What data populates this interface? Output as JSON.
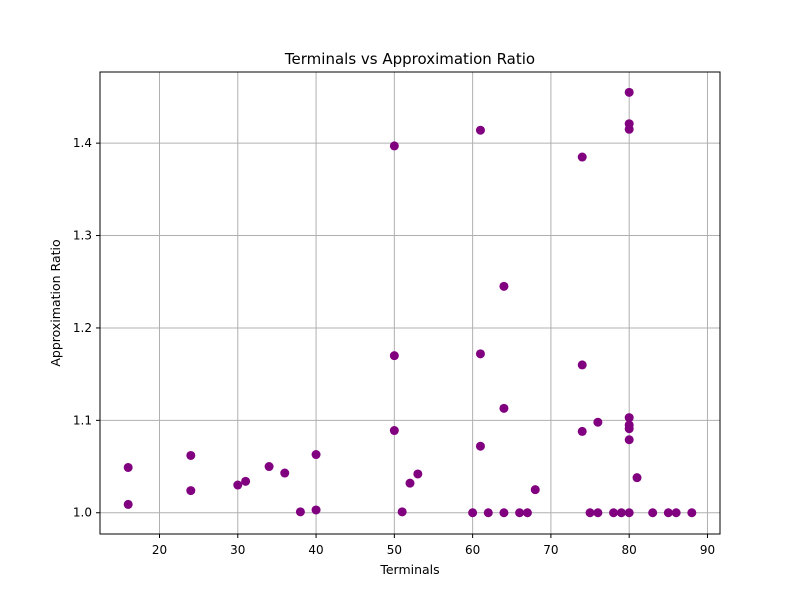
{
  "chart_data": {
    "type": "scatter",
    "title": "Terminals vs Approximation Ratio",
    "xlabel": "Terminals",
    "ylabel": "Approximation Ratio",
    "xlim": [
      12.4,
      91.6
    ],
    "ylim": [
      0.977,
      1.477
    ],
    "xticks": [
      20,
      30,
      40,
      50,
      60,
      70,
      80,
      90
    ],
    "yticks": [
      1.0,
      1.1,
      1.2,
      1.3,
      1.4
    ],
    "ytick_labels": [
      "1.0",
      "1.1",
      "1.2",
      "1.3",
      "1.4"
    ],
    "grid": true,
    "marker_color": "#800080",
    "points": [
      {
        "x": 16,
        "y": 1.049
      },
      {
        "x": 16,
        "y": 1.009
      },
      {
        "x": 24,
        "y": 1.062
      },
      {
        "x": 24,
        "y": 1.024
      },
      {
        "x": 30,
        "y": 1.03
      },
      {
        "x": 31,
        "y": 1.034
      },
      {
        "x": 34,
        "y": 1.05
      },
      {
        "x": 36,
        "y": 1.043
      },
      {
        "x": 38,
        "y": 1.001
      },
      {
        "x": 40,
        "y": 1.063
      },
      {
        "x": 40,
        "y": 1.003
      },
      {
        "x": 50,
        "y": 1.397
      },
      {
        "x": 50,
        "y": 1.17
      },
      {
        "x": 50,
        "y": 1.089
      },
      {
        "x": 51,
        "y": 1.001
      },
      {
        "x": 52,
        "y": 1.032
      },
      {
        "x": 53,
        "y": 1.042
      },
      {
        "x": 60,
        "y": 1.0
      },
      {
        "x": 61,
        "y": 1.414
      },
      {
        "x": 61,
        "y": 1.172
      },
      {
        "x": 61,
        "y": 1.072
      },
      {
        "x": 62,
        "y": 1.0
      },
      {
        "x": 64,
        "y": 1.245
      },
      {
        "x": 64,
        "y": 1.113
      },
      {
        "x": 64,
        "y": 1.0
      },
      {
        "x": 66,
        "y": 1.0
      },
      {
        "x": 67,
        "y": 1.0
      },
      {
        "x": 68,
        "y": 1.025
      },
      {
        "x": 74,
        "y": 1.385
      },
      {
        "x": 74,
        "y": 1.16
      },
      {
        "x": 74,
        "y": 1.088
      },
      {
        "x": 75,
        "y": 1.0
      },
      {
        "x": 76,
        "y": 1.098
      },
      {
        "x": 76,
        "y": 1.0
      },
      {
        "x": 78,
        "y": 1.0
      },
      {
        "x": 79,
        "y": 1.0
      },
      {
        "x": 80,
        "y": 1.455
      },
      {
        "x": 80,
        "y": 1.421
      },
      {
        "x": 80,
        "y": 1.415
      },
      {
        "x": 80,
        "y": 1.103
      },
      {
        "x": 80,
        "y": 1.095
      },
      {
        "x": 80,
        "y": 1.091
      },
      {
        "x": 80,
        "y": 1.079
      },
      {
        "x": 80,
        "y": 1.0
      },
      {
        "x": 81,
        "y": 1.038
      },
      {
        "x": 83,
        "y": 1.0
      },
      {
        "x": 85,
        "y": 1.0
      },
      {
        "x": 86,
        "y": 1.0
      },
      {
        "x": 88,
        "y": 1.0
      }
    ]
  }
}
